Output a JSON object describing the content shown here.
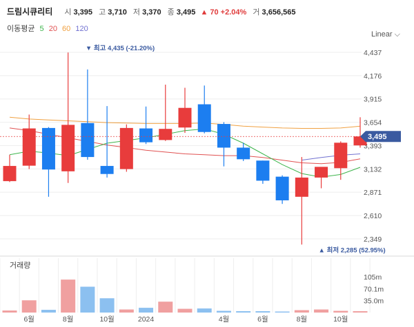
{
  "header": {
    "name": "드림시큐리티",
    "open_label": "시",
    "open": "3,395",
    "high_label": "고",
    "high": "3,710",
    "low_label": "저",
    "low": "3,370",
    "close_label": "종",
    "close": "3,495",
    "change": "▲ 70 +2.04%",
    "volume_label": "거",
    "volume": "3,656,565"
  },
  "ma_legend": {
    "title": "이동평균",
    "items": [
      {
        "label": "5",
        "color": "#3cb44b"
      },
      {
        "label": "20",
        "color": "#e05050"
      },
      {
        "label": "60",
        "color": "#f0a040"
      },
      {
        "label": "120",
        "color": "#7070d0"
      }
    ]
  },
  "scale_label": "Linear",
  "colors": {
    "up": "#e83c3c",
    "down": "#1c7ef0",
    "up_vol": "#f0a0a0",
    "down_vol": "#8cc0f0",
    "price_tag": "#3a5aa0"
  },
  "chart_data": {
    "type": "candlestick",
    "y_ticks": [
      "4,437",
      "4,176",
      "3,915",
      "3,654",
      "3,393",
      "3,132",
      "2,871",
      "2,610",
      "2,349"
    ],
    "ylim": [
      2210,
      4560
    ],
    "current_price": "3,495",
    "current_value": 3495,
    "annotations": {
      "high": {
        "text": "▼ 최고 4,435 (-21.20%)",
        "value": 4435,
        "index": 4
      },
      "low": {
        "text": "▲ 최저 2,285 (52.95%)",
        "value": 2285,
        "index": 16
      }
    },
    "candles": [
      {
        "o": 2995,
        "h": 3290,
        "l": 2985,
        "c": 3165
      },
      {
        "o": 3168,
        "h": 3740,
        "l": 3130,
        "c": 3585
      },
      {
        "o": 3590,
        "h": 3600,
        "l": 2820,
        "c": 3125
      },
      {
        "o": 3105,
        "h": 4435,
        "l": 2975,
        "c": 3625
      },
      {
        "o": 3645,
        "h": 4245,
        "l": 3235,
        "c": 3265
      },
      {
        "o": 3165,
        "h": 3835,
        "l": 3035,
        "c": 3075
      },
      {
        "o": 3130,
        "h": 3630,
        "l": 3100,
        "c": 3590
      },
      {
        "o": 3585,
        "h": 3830,
        "l": 3410,
        "c": 3430
      },
      {
        "o": 3455,
        "h": 4075,
        "l": 3445,
        "c": 3580
      },
      {
        "o": 3595,
        "h": 4040,
        "l": 3535,
        "c": 3815
      },
      {
        "o": 3855,
        "h": 4065,
        "l": 3530,
        "c": 3545
      },
      {
        "o": 3635,
        "h": 3655,
        "l": 3160,
        "c": 3370
      },
      {
        "o": 3370,
        "h": 3425,
        "l": 3220,
        "c": 3240
      },
      {
        "o": 3225,
        "h": 3225,
        "l": 2965,
        "c": 3000
      },
      {
        "o": 3045,
        "h": 3060,
        "l": 2740,
        "c": 2780
      },
      {
        "o": 2820,
        "h": 3265,
        "l": 2285,
        "c": 3035
      },
      {
        "o": 3035,
        "h": 3145,
        "l": 2915,
        "c": 3155
      },
      {
        "o": 3140,
        "h": 3440,
        "l": 3010,
        "c": 3425
      },
      {
        "o": 3395,
        "h": 3710,
        "l": 3370,
        "c": 3495
      }
    ],
    "ma5": [
      3290,
      3330,
      3310,
      3280,
      3350,
      3420,
      3450,
      3480,
      3520,
      3560,
      3580,
      3520,
      3420,
      3300,
      3180,
      3080,
      3040,
      3070,
      3150
    ],
    "ma20": [
      3590,
      3560,
      3520,
      3480,
      3440,
      3400,
      3370,
      3340,
      3320,
      3300,
      3290,
      3280,
      3280,
      3260,
      3230,
      3200,
      3190,
      3205,
      3245
    ],
    "ma60": [
      3710,
      3690,
      3680,
      3670,
      3660,
      3650,
      3645,
      3640,
      3640,
      3640,
      3645,
      3630,
      3610,
      3600,
      3590,
      3585,
      3585,
      3590,
      3610
    ],
    "ma120": [
      null,
      null,
      null,
      null,
      null,
      null,
      null,
      null,
      null,
      null,
      null,
      null,
      null,
      null,
      null,
      3230,
      3260,
      3285,
      3300
    ],
    "volume": {
      "title": "거래량",
      "ticks": [
        "105m",
        "70.1m",
        "35.0m"
      ],
      "ylim": [
        0,
        160
      ],
      "values": [
        6,
        36,
        8,
        97,
        76,
        42,
        9,
        14,
        32,
        11,
        12,
        5,
        4,
        4,
        3,
        7,
        9,
        5,
        4
      ]
    },
    "x_labels": [
      {
        "label": "6월",
        "index": 1
      },
      {
        "label": "8월",
        "index": 3
      },
      {
        "label": "10월",
        "index": 5
      },
      {
        "label": "2024",
        "index": 7
      },
      {
        "label": "4월",
        "index": 11
      },
      {
        "label": "6월",
        "index": 13
      },
      {
        "label": "8월",
        "index": 15
      },
      {
        "label": "10월",
        "index": 17
      }
    ]
  }
}
